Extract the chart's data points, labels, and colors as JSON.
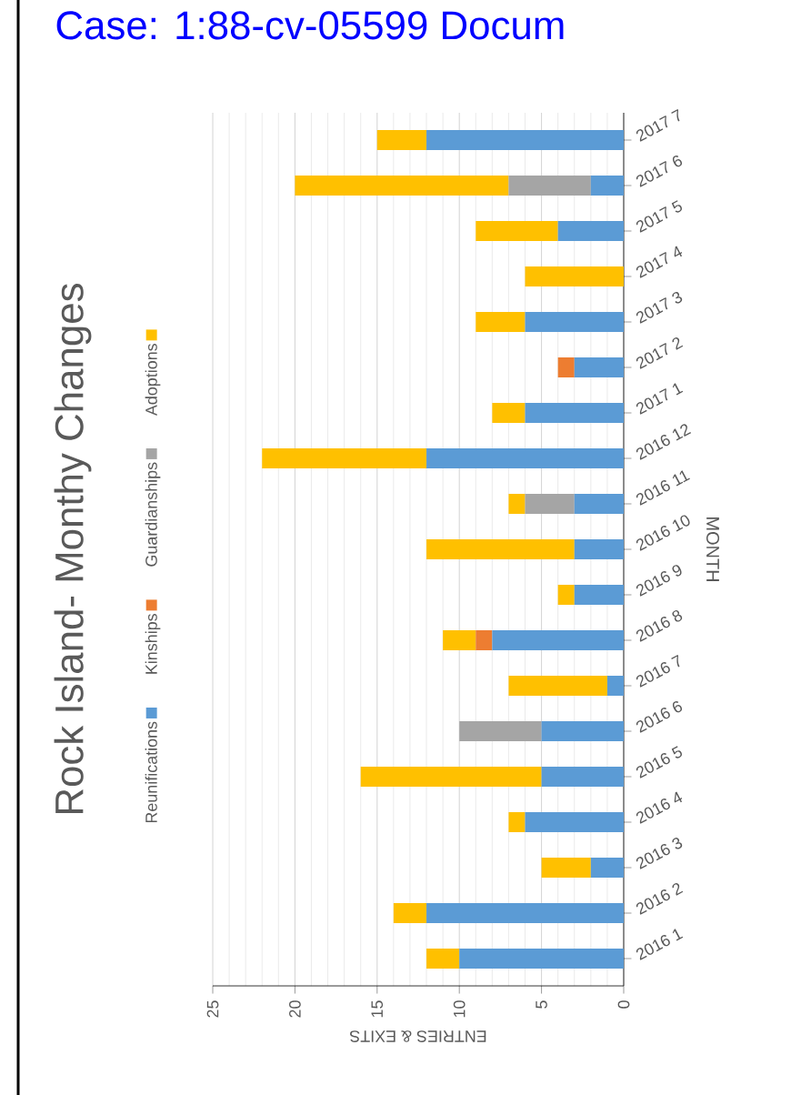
{
  "chart_data": {
    "type": "bar",
    "orientation": "horizontal",
    "stacked": true,
    "title": "Rock Island- Monthy Changes",
    "xlabel": "ENTRIES & EXITS",
    "ylabel": "MONTH",
    "annotations": [
      "Case: 1:88-cv-05599 Docum"
    ],
    "categories": [
      "2017 7",
      "2017 6",
      "2017 5",
      "2017 4",
      "2017 3",
      "2017 2",
      "2017 1",
      "2016 12",
      "2016 11",
      "2016 10",
      "2016 9",
      "2016 8",
      "2016 7",
      "2016 6",
      "2016 5",
      "2016 4",
      "2016 3",
      "2016 2",
      "2016 1"
    ],
    "series": [
      {
        "name": "Reunifications",
        "color": "#5b9bd5",
        "values": [
          12,
          2,
          4,
          0,
          6,
          3,
          6,
          12,
          3,
          3,
          3,
          8,
          1,
          5,
          5,
          6,
          2,
          12,
          10
        ]
      },
      {
        "name": "Kinships",
        "color": "#ed7d31",
        "values": [
          0,
          0,
          0,
          0,
          0,
          1,
          0,
          0,
          0,
          0,
          0,
          1,
          0,
          0,
          0,
          0,
          0,
          0,
          0
        ]
      },
      {
        "name": "Guardianships",
        "color": "#a5a5a5",
        "values": [
          0,
          5,
          0,
          0,
          0,
          0,
          0,
          0,
          3,
          0,
          0,
          0,
          0,
          5,
          0,
          0,
          0,
          0,
          0
        ]
      },
      {
        "name": "Adoptions",
        "color": "#ffc000",
        "values": [
          3,
          13,
          5,
          6,
          3,
          0,
          2,
          10,
          1,
          9,
          1,
          2,
          6,
          0,
          11,
          1,
          3,
          2,
          2
        ]
      }
    ],
    "xlim": [
      25,
      0
    ],
    "xticks": [
      0,
      5,
      10,
      15,
      20,
      25
    ],
    "grid": "x",
    "legend": "left"
  }
}
